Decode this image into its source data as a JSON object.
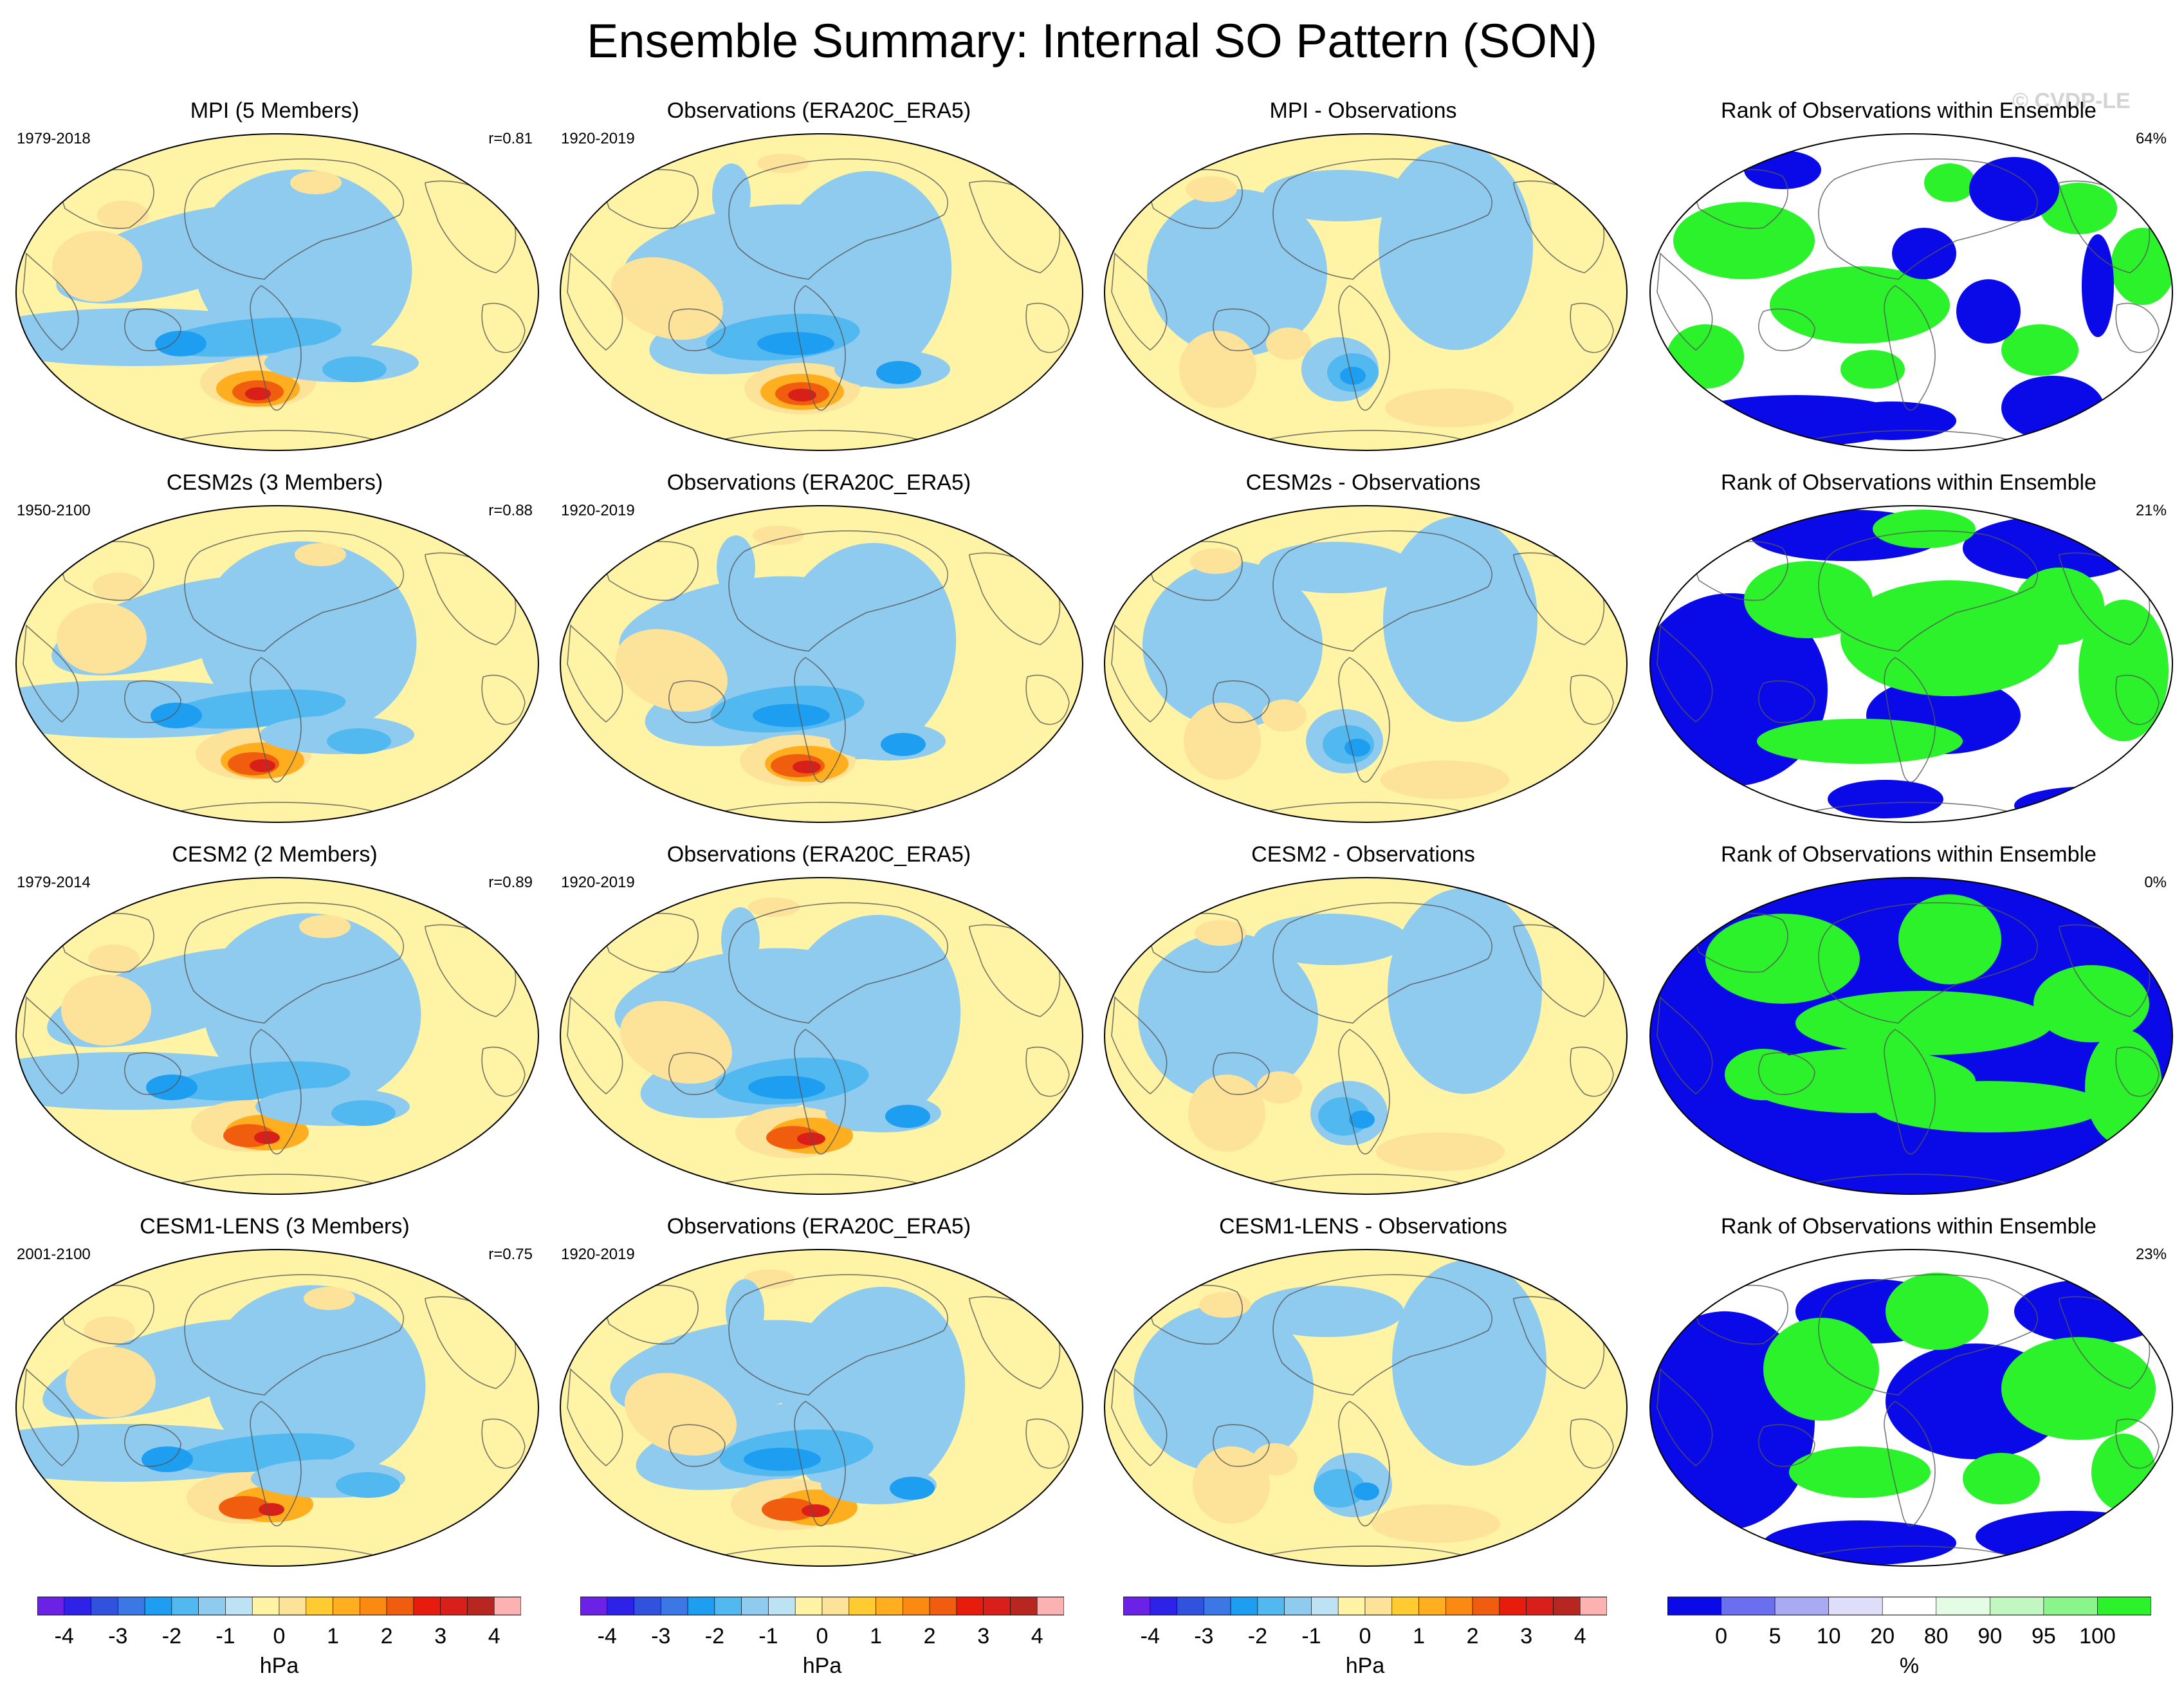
{
  "title": "Ensemble Summary: Internal SO Pattern (SON)",
  "copyright": "© CVDP-LE",
  "colorbars": {
    "anomaly": {
      "colors": [
        "#6b21e6",
        "#2f22e8",
        "#3152dc",
        "#3b78e5",
        "#1e9ef0",
        "#52b8f0",
        "#8ecbef",
        "#bde2f3",
        "#fff3a6",
        "#fde29a",
        "#ffcb30",
        "#ffae1f",
        "#fb8a12",
        "#f15d0e",
        "#e81c0c",
        "#d81f19",
        "#b7271f",
        "#fbb2b0"
      ],
      "tick_labels": [
        "-4",
        "-3",
        "-2",
        "-1",
        "0",
        "1",
        "2",
        "3",
        "4"
      ],
      "unit": "hPa"
    },
    "rank": {
      "colors": [
        "#0a0ae8",
        "#6a6ff0",
        "#aaaaf2",
        "#dedefa",
        "#ffffff",
        "#e4fbe4",
        "#c2f7c2",
        "#8af58a",
        "#2bf22b"
      ],
      "tick_labels": [
        "0",
        "5",
        "10",
        "20",
        "80",
        "90",
        "95",
        "100"
      ],
      "unit": "%"
    }
  },
  "rows": [
    {
      "model": {
        "title": "MPI (5 Members)",
        "years": "1979-2018",
        "r": "r=0.81"
      },
      "obs": {
        "title": "Observations (ERA20C_ERA5)",
        "years": "1920-2019"
      },
      "diff": {
        "title": "MPI - Observations"
      },
      "rank": {
        "title": "Rank of Observations within Ensemble",
        "percent": "64%"
      }
    },
    {
      "model": {
        "title": "CESM2s (3 Members)",
        "years": "1950-2100",
        "r": "r=0.88"
      },
      "obs": {
        "title": "Observations (ERA20C_ERA5)",
        "years": "1920-2019"
      },
      "diff": {
        "title": "CESM2s - Observations"
      },
      "rank": {
        "title": "Rank of Observations within Ensemble",
        "percent": "21%"
      }
    },
    {
      "model": {
        "title": "CESM2 (2 Members)",
        "years": "1979-2014",
        "r": "r=0.89"
      },
      "obs": {
        "title": "Observations (ERA20C_ERA5)",
        "years": "1920-2019"
      },
      "diff": {
        "title": "CESM2 - Observations"
      },
      "rank": {
        "title": "Rank of Observations within Ensemble",
        "percent": "0%"
      }
    },
    {
      "model": {
        "title": "CESM1-LENS (3 Members)",
        "years": "2001-2100",
        "r": "r=0.75"
      },
      "obs": {
        "title": "Observations (ERA20C_ERA5)",
        "years": "1920-2019"
      },
      "diff": {
        "title": "CESM1-LENS - Observations"
      },
      "rank": {
        "title": "Rank of Observations within Ensemble",
        "percent": "23%"
      }
    }
  ]
}
